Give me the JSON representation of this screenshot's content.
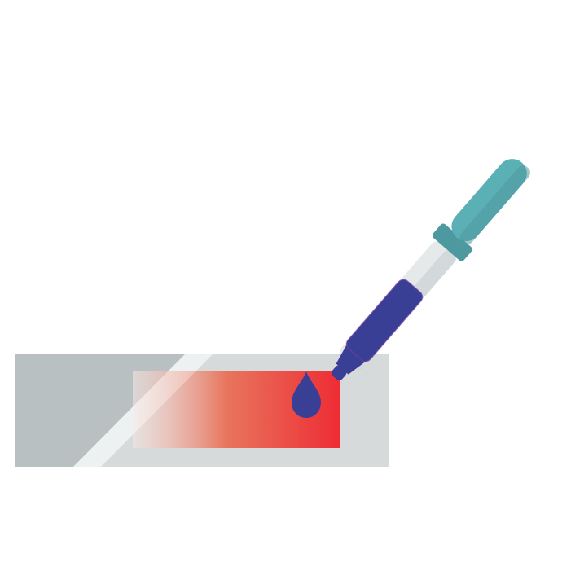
{
  "illustration": {
    "subject": "dropper-over-glass-slide",
    "icons": [
      "glass-slide-icon",
      "stain-smear-icon",
      "dropper-icon",
      "droplet-icon"
    ],
    "colors": {
      "background": "#ffffff",
      "slide_body": "#d6dadb",
      "slide_shadow": "#b9c0c2",
      "slide_highlight": "#e9eced",
      "smear_start": "#f2e6e2",
      "smear_mid": "#e8755e",
      "smear_end": "#ee2c34",
      "droplet": "#3a3f96",
      "dropper_bulb": "#5bb0b6",
      "dropper_bulb_shadow": "#4e999f",
      "dropper_tube": "#e6e9ea",
      "dropper_tube_shadow": "#c6cdd0",
      "dropper_liquid": "#3a3f96",
      "dropper_liquid_outline": "#6a3fa0"
    }
  }
}
